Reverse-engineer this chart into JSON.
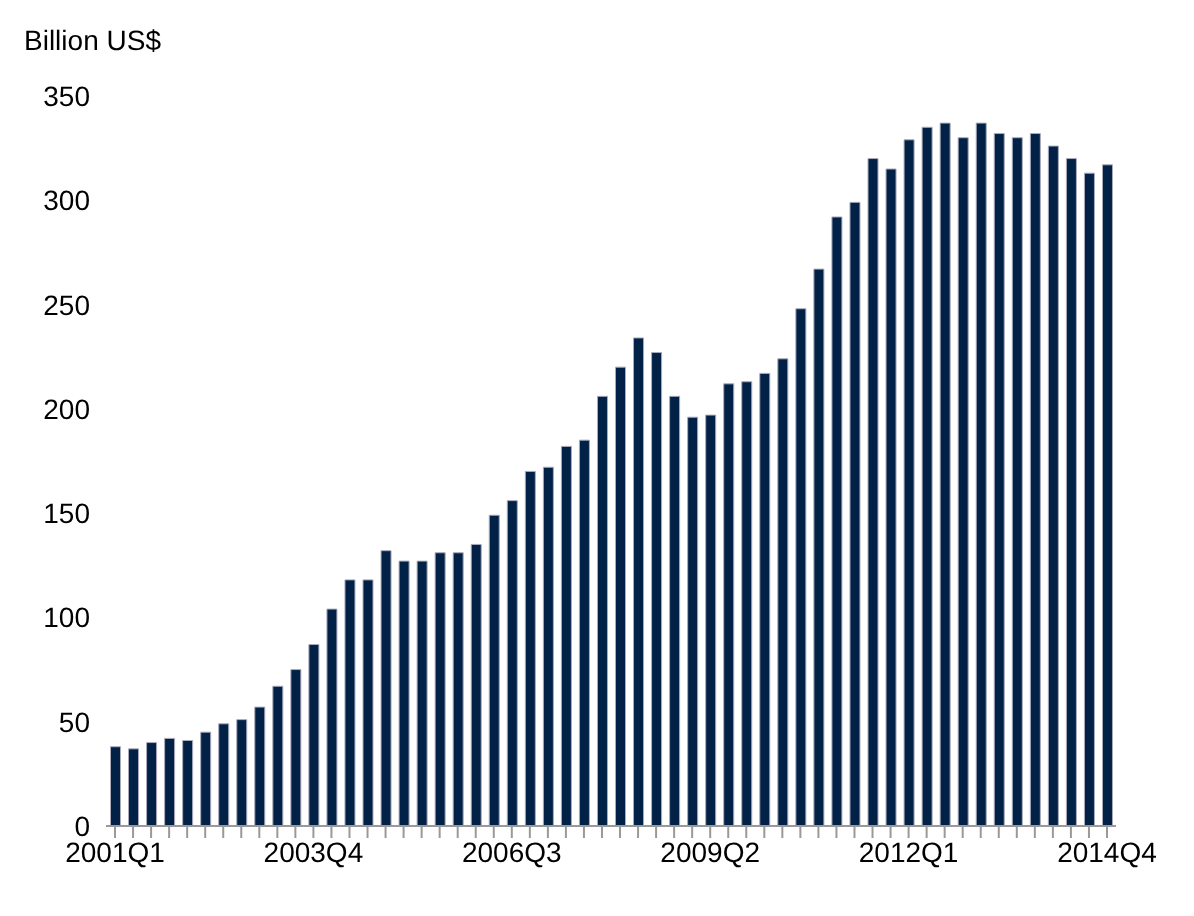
{
  "chart_data": {
    "type": "bar",
    "ylabel": "Billion US$",
    "categories": [
      "2001Q1",
      null,
      null,
      null,
      null,
      null,
      null,
      null,
      null,
      null,
      null,
      "2003Q4",
      null,
      null,
      null,
      null,
      null,
      null,
      null,
      null,
      null,
      null,
      "2006Q3",
      null,
      null,
      null,
      null,
      null,
      null,
      null,
      null,
      null,
      null,
      "2009Q2",
      null,
      null,
      null,
      null,
      null,
      null,
      null,
      null,
      null,
      null,
      "2012Q1",
      null,
      null,
      null,
      null,
      null,
      null,
      null,
      null,
      null,
      null,
      "2014Q4"
    ],
    "values": [
      38,
      37,
      40,
      42,
      41,
      45,
      49,
      51,
      57,
      67,
      75,
      87,
      104,
      118,
      118,
      132,
      127,
      127,
      131,
      131,
      135,
      149,
      156,
      170,
      172,
      182,
      185,
      206,
      220,
      234,
      227,
      206,
      196,
      197,
      212,
      213,
      217,
      224,
      248,
      267,
      292,
      299,
      320,
      315,
      329,
      335,
      337,
      330,
      337,
      332,
      330,
      332,
      326,
      320,
      313,
      317
    ],
    "color": "#012147",
    "ylim": [
      0,
      350
    ],
    "yticks": [
      0,
      50,
      100,
      150,
      200,
      250,
      300,
      350
    ],
    "grid": false,
    "legend": false
  }
}
